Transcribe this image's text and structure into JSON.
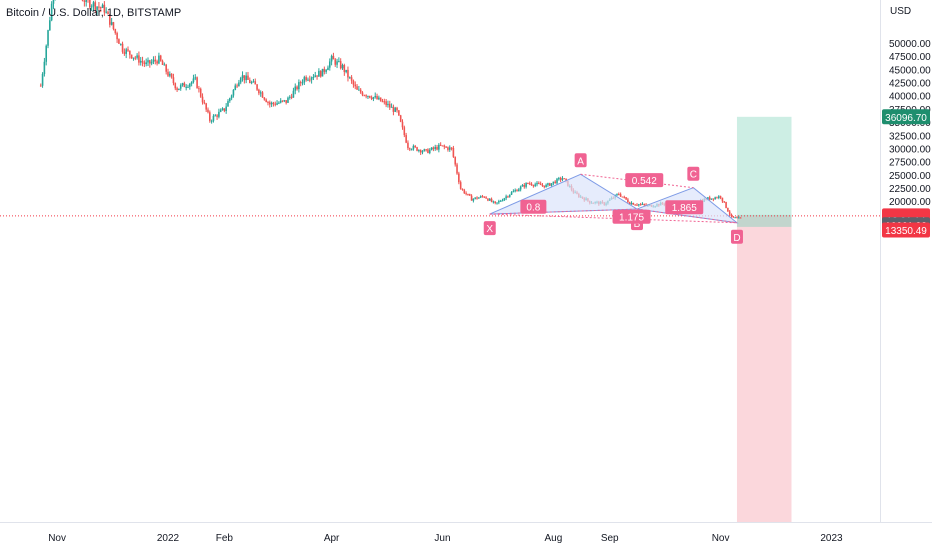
{
  "header": {
    "symbol_title": "Bitcoin / U.S. Dollar, 1D, BITSTAMP",
    "currency": "USD"
  },
  "colors": {
    "up": "#26a69a",
    "down": "#ef5350",
    "pattern_fill": "#dbe4fb",
    "pattern_line": "#f06292",
    "target_fill": "#cdeee4",
    "stop_fill": "#fbd7dc",
    "price_tag_green": "#1e8e6e",
    "price_tag_red": "#f23645",
    "price_tag_gray": "#5d606b"
  },
  "chart_data": {
    "type": "candlestick",
    "title": "Bitcoin / U.S. Dollar, 1D, BITSTAMP",
    "ylim": [
      13350,
      53000
    ],
    "y_ticks": [
      "50000.00",
      "47500.00",
      "45000.00",
      "42500.00",
      "40000.00",
      "37500.00",
      "35000.00",
      "32500.00",
      "30000.00",
      "27500.00",
      "25000.00",
      "22500.00",
      "20000.00"
    ],
    "x_ticks": [
      "Nov",
      "2022",
      "Feb",
      "Apr",
      "Jun",
      "Aug",
      "Sep",
      "Nov",
      "2023"
    ],
    "x_tick_days": [
      -61,
      0,
      31,
      90,
      151,
      212,
      243,
      304,
      365
    ],
    "series_path": [
      {
        "d": -70,
        "v": 42000
      },
      {
        "d": -63,
        "v": 60000
      },
      {
        "d": -55,
        "v": 61000
      },
      {
        "d": -45,
        "v": 58000
      },
      {
        "d": -35,
        "v": 56500
      },
      {
        "d": -25,
        "v": 49000
      },
      {
        "d": -12,
        "v": 46000
      },
      {
        "d": -5,
        "v": 47000
      },
      {
        "d": 5,
        "v": 41500
      },
      {
        "d": 15,
        "v": 43000
      },
      {
        "d": 23,
        "v": 35500
      },
      {
        "d": 31,
        "v": 37500
      },
      {
        "d": 40,
        "v": 44000
      },
      {
        "d": 48,
        "v": 42000
      },
      {
        "d": 56,
        "v": 38500
      },
      {
        "d": 65,
        "v": 39000
      },
      {
        "d": 75,
        "v": 43500
      },
      {
        "d": 85,
        "v": 44500
      },
      {
        "d": 90,
        "v": 47000
      },
      {
        "d": 96,
        "v": 45500
      },
      {
        "d": 104,
        "v": 41000
      },
      {
        "d": 112,
        "v": 40000
      },
      {
        "d": 120,
        "v": 38500
      },
      {
        "d": 126,
        "v": 37000
      },
      {
        "d": 132,
        "v": 30500
      },
      {
        "d": 142,
        "v": 29500
      },
      {
        "d": 150,
        "v": 30500
      },
      {
        "d": 156,
        "v": 30000
      },
      {
        "d": 161,
        "v": 22500
      },
      {
        "d": 167,
        "v": 20500
      },
      {
        "d": 174,
        "v": 21000
      },
      {
        "d": 180,
        "v": 19500
      },
      {
        "d": 188,
        "v": 21500
      },
      {
        "d": 198,
        "v": 23500
      },
      {
        "d": 208,
        "v": 23000
      },
      {
        "d": 217,
        "v": 24500
      },
      {
        "d": 224,
        "v": 21500
      },
      {
        "d": 232,
        "v": 20000
      },
      {
        "d": 240,
        "v": 19600
      },
      {
        "d": 248,
        "v": 21500
      },
      {
        "d": 254,
        "v": 19800
      },
      {
        "d": 264,
        "v": 19200
      },
      {
        "d": 276,
        "v": 19800
      },
      {
        "d": 286,
        "v": 19400
      },
      {
        "d": 296,
        "v": 20500
      },
      {
        "d": 304,
        "v": 21000
      },
      {
        "d": 310,
        "v": 17000
      },
      {
        "d": 315,
        "v": 16700
      }
    ],
    "harmonic_pattern": {
      "points": [
        {
          "label": "X",
          "day": 177,
          "price": 17650
        },
        {
          "label": "A",
          "day": 227,
          "price": 25200
        },
        {
          "label": "B",
          "day": 258,
          "price": 18600
        },
        {
          "label": "C",
          "day": 289,
          "price": 22650
        },
        {
          "label": "D",
          "day": 313,
          "price": 16000
        }
      ],
      "ratios": [
        {
          "label": "0.8",
          "day": 201,
          "price": 19050
        },
        {
          "label": "0.542",
          "day": 262,
          "price": 24100
        },
        {
          "label": "1.175",
          "day": 255,
          "price": 17150
        },
        {
          "label": "1.865",
          "day": 284,
          "price": 18950
        }
      ]
    },
    "position": {
      "entry": 17306.0,
      "target": 36096.7,
      "stop": 13350.49,
      "start_day": 313,
      "end_day": 343
    },
    "price_labels": [
      {
        "label": "36096.70",
        "price": 36096.7,
        "color": "#1e8e6e"
      },
      {
        "label": "17306.00",
        "price": 17306.0,
        "color": "#f23645"
      },
      {
        "label": "12:01:14",
        "price": 16560,
        "color": "#f23645"
      },
      {
        "label": "16661.92",
        "price": 15620,
        "color": "#5d606b"
      },
      {
        "label": "13350.49",
        "price": 14620,
        "color": "#f23645"
      }
    ]
  }
}
